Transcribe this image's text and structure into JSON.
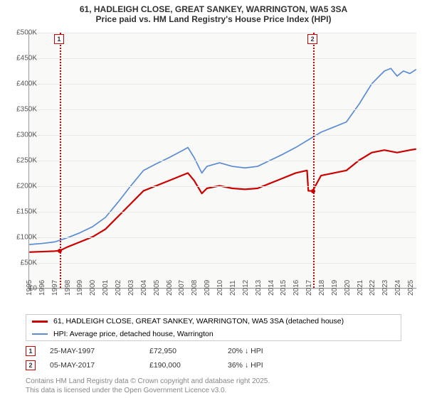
{
  "title_line1": "61, HADLEIGH CLOSE, GREAT SANKEY, WARRINGTON, WA5 3SA",
  "title_line2": "Price paid vs. HM Land Registry's House Price Index (HPI)",
  "chart": {
    "type": "line",
    "background_color": "#f9f9f7",
    "grid_color": "#e8e8e6",
    "ylim": [
      0,
      500000
    ],
    "ytick_step": 50000,
    "yticks": [
      "£0",
      "£50K",
      "£100K",
      "£150K",
      "£200K",
      "£250K",
      "£300K",
      "£350K",
      "£400K",
      "£450K",
      "£500K"
    ],
    "xlim": [
      1995,
      2025.5
    ],
    "xticks": [
      1995,
      1996,
      1997,
      1998,
      1999,
      2000,
      2001,
      2002,
      2003,
      2004,
      2005,
      2006,
      2007,
      2008,
      2009,
      2010,
      2011,
      2012,
      2013,
      2014,
      2015,
      2016,
      2017,
      2018,
      2019,
      2020,
      2021,
      2022,
      2023,
      2024,
      2025
    ],
    "series": [
      {
        "name": "property",
        "label": "61, HADLEIGH CLOSE, GREAT SANKEY, WARRINGTON, WA5 3SA (detached house)",
        "color": "#cc0000",
        "line_width": 2.2,
        "data": [
          [
            1995,
            70000
          ],
          [
            1996,
            71000
          ],
          [
            1997,
            72000
          ],
          [
            1997.4,
            72950
          ],
          [
            1998,
            80000
          ],
          [
            1999,
            90000
          ],
          [
            2000,
            100000
          ],
          [
            2001,
            115000
          ],
          [
            2002,
            140000
          ],
          [
            2003,
            165000
          ],
          [
            2004,
            190000
          ],
          [
            2005,
            200000
          ],
          [
            2006,
            210000
          ],
          [
            2007,
            220000
          ],
          [
            2007.5,
            225000
          ],
          [
            2008,
            210000
          ],
          [
            2008.6,
            185000
          ],
          [
            2009,
            195000
          ],
          [
            2010,
            200000
          ],
          [
            2011,
            195000
          ],
          [
            2012,
            193000
          ],
          [
            2013,
            195000
          ],
          [
            2014,
            205000
          ],
          [
            2015,
            215000
          ],
          [
            2016,
            225000
          ],
          [
            2016.9,
            230000
          ],
          [
            2017.0,
            190000
          ],
          [
            2017.34,
            190000
          ],
          [
            2018,
            220000
          ],
          [
            2019,
            225000
          ],
          [
            2020,
            230000
          ],
          [
            2021,
            250000
          ],
          [
            2022,
            265000
          ],
          [
            2023,
            270000
          ],
          [
            2024,
            265000
          ],
          [
            2025,
            270000
          ],
          [
            2025.5,
            272000
          ]
        ]
      },
      {
        "name": "hpi",
        "label": "HPI: Average price, detached house, Warrington",
        "color": "#5b8bd4",
        "line_width": 1.7,
        "data": [
          [
            1995,
            85000
          ],
          [
            1996,
            87000
          ],
          [
            1997,
            90000
          ],
          [
            1998,
            98000
          ],
          [
            1999,
            108000
          ],
          [
            2000,
            120000
          ],
          [
            2001,
            138000
          ],
          [
            2002,
            168000
          ],
          [
            2003,
            200000
          ],
          [
            2004,
            230000
          ],
          [
            2005,
            243000
          ],
          [
            2006,
            255000
          ],
          [
            2007,
            268000
          ],
          [
            2007.5,
            275000
          ],
          [
            2008,
            255000
          ],
          [
            2008.6,
            225000
          ],
          [
            2009,
            238000
          ],
          [
            2010,
            245000
          ],
          [
            2011,
            238000
          ],
          [
            2012,
            235000
          ],
          [
            2013,
            238000
          ],
          [
            2014,
            250000
          ],
          [
            2015,
            262000
          ],
          [
            2016,
            275000
          ],
          [
            2017,
            290000
          ],
          [
            2018,
            305000
          ],
          [
            2019,
            315000
          ],
          [
            2020,
            325000
          ],
          [
            2021,
            360000
          ],
          [
            2022,
            400000
          ],
          [
            2023,
            425000
          ],
          [
            2023.5,
            430000
          ],
          [
            2024,
            415000
          ],
          [
            2024.5,
            425000
          ],
          [
            2025,
            420000
          ],
          [
            2025.5,
            428000
          ]
        ]
      }
    ],
    "sale_markers": [
      {
        "n": "1",
        "x": 1997.4,
        "y": 72950,
        "color": "#cc0000"
      },
      {
        "n": "2",
        "x": 2017.34,
        "y": 190000,
        "color": "#cc0000"
      }
    ]
  },
  "legend": {
    "rows": [
      {
        "color": "#cc0000",
        "width": 3,
        "label_key": "chart.series.0.label"
      },
      {
        "color": "#5b8bd4",
        "width": 2,
        "label_key": "chart.series.1.label"
      }
    ]
  },
  "sales": [
    {
      "n": "1",
      "border": "#cc0000",
      "date": "25-MAY-1997",
      "price": "£72,950",
      "delta": "20% ",
      "delta_suffix": "HPI"
    },
    {
      "n": "2",
      "border": "#cc0000",
      "date": "05-MAY-2017",
      "price": "£190,000",
      "delta": "36% ",
      "delta_suffix": "HPI"
    }
  ],
  "footer_line1": "Contains HM Land Registry data © Crown copyright and database right 2025.",
  "footer_line2": "This data is licensed under the Open Government Licence v3.0."
}
